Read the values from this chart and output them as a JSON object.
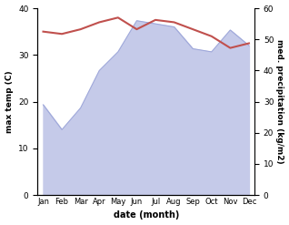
{
  "months": [
    "Jan",
    "Feb",
    "Mar",
    "Apr",
    "May",
    "Jun",
    "Jul",
    "Aug",
    "Sep",
    "Oct",
    "Nov",
    "Dec"
  ],
  "month_positions": [
    0,
    1,
    2,
    3,
    4,
    5,
    6,
    7,
    8,
    9,
    10,
    11
  ],
  "temp": [
    35.0,
    34.5,
    35.5,
    37.0,
    38.0,
    35.5,
    37.5,
    37.0,
    35.5,
    34.0,
    31.5,
    32.5
  ],
  "precip": [
    29.0,
    21.0,
    28.0,
    40.0,
    46.0,
    56.0,
    55.0,
    54.0,
    47.0,
    46.0,
    53.0,
    48.0
  ],
  "temp_color": "#c0504d",
  "precip_color": "#c5cae9",
  "precip_line_color": "#9fa8da",
  "bg_color": "#ffffff",
  "xlabel": "date (month)",
  "ylabel_left": "max temp (C)",
  "ylabel_right": "med. precipitation (kg/m2)",
  "ylim_left": [
    0,
    40
  ],
  "ylim_right": [
    0,
    60
  ],
  "yticks_left": [
    0,
    10,
    20,
    30,
    40
  ],
  "yticks_right": [
    0,
    10,
    20,
    30,
    40,
    50,
    60
  ]
}
